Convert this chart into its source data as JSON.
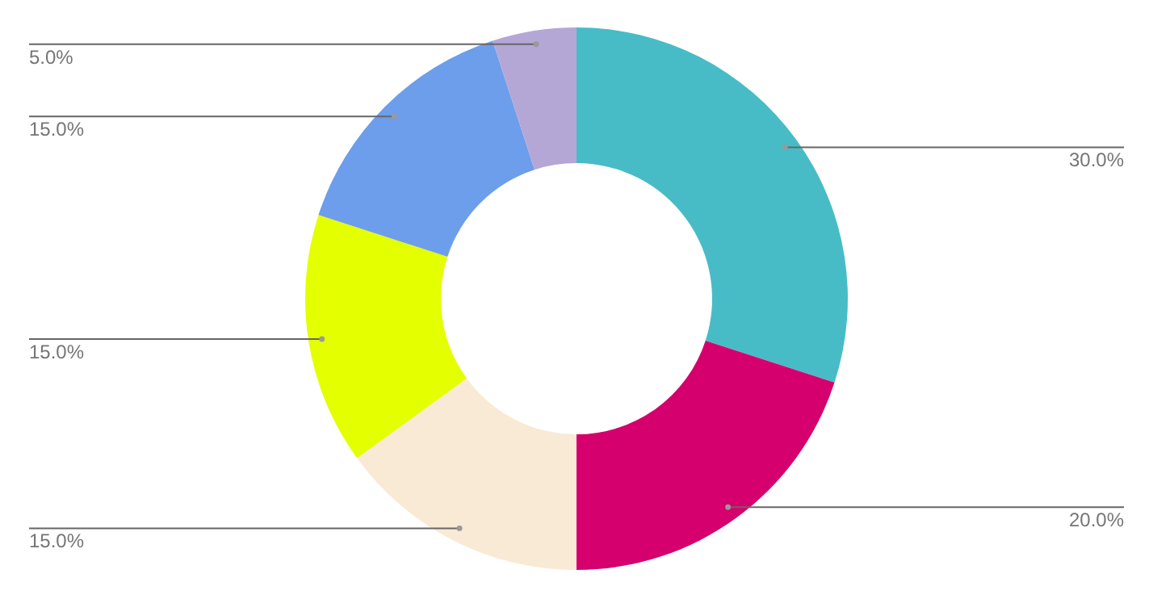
{
  "chart_data": {
    "type": "donut",
    "categories": [
      null,
      null,
      null,
      null,
      null,
      null
    ],
    "values": [
      30,
      20,
      15,
      15,
      15,
      5
    ],
    "colors": [
      "#47bcc6",
      "#d5006d",
      "#f8ead4",
      "#e4ff00",
      "#6d9eeb",
      "#b4a7d6"
    ],
    "value_labels": [
      "30.0%",
      "20.0%",
      "15.0%",
      "15.0%",
      "15.0%",
      "5.0%"
    ]
  }
}
